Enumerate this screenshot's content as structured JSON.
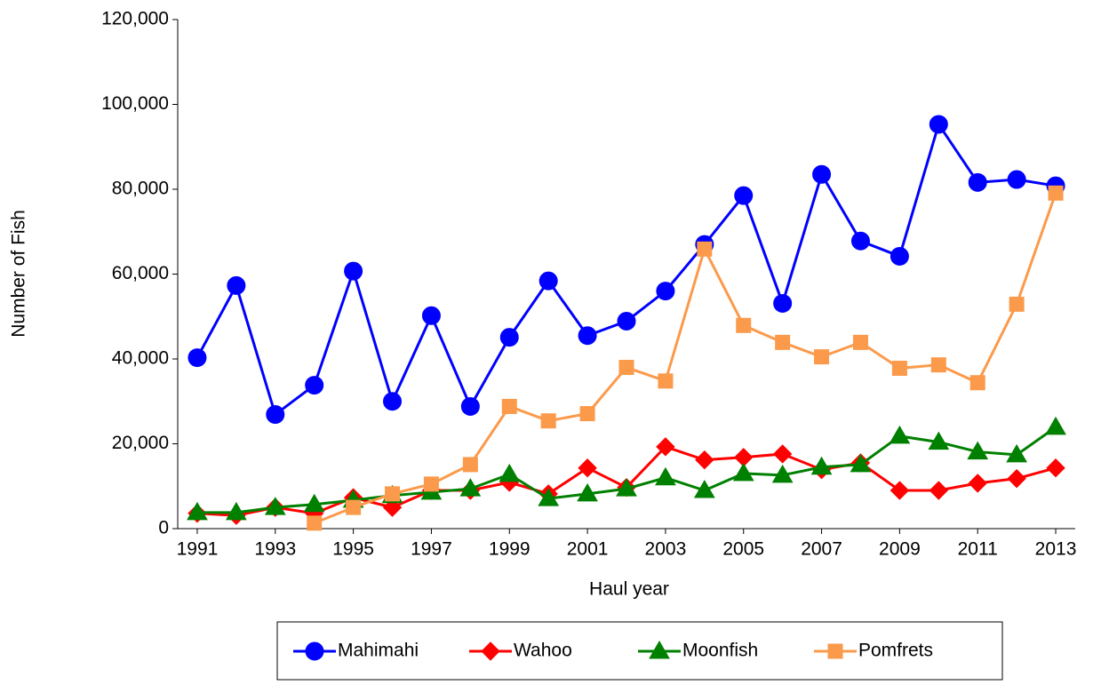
{
  "chart_data": {
    "type": "line",
    "xlabel": "Haul year",
    "ylabel": "Number of Fish",
    "x": [
      1991,
      1992,
      1993,
      1994,
      1995,
      1996,
      1997,
      1998,
      1999,
      2000,
      2001,
      2002,
      2003,
      2004,
      2005,
      2006,
      2007,
      2008,
      2009,
      2010,
      2011,
      2012,
      2013
    ],
    "xlim": [
      1990.5,
      2013.5
    ],
    "xticks": [
      1991,
      1993,
      1995,
      1997,
      1999,
      2001,
      2003,
      2005,
      2007,
      2009,
      2011,
      2013
    ],
    "ylim": [
      0,
      120000
    ],
    "yticks": [
      0,
      {
        "value": 20000,
        "label": "20,000"
      },
      {
        "value": 40000,
        "label": "40,000"
      },
      {
        "value": 60000,
        "label": "60,000"
      },
      {
        "value": 80000,
        "label": "80,000"
      },
      {
        "value": 100000,
        "label": "100,000"
      },
      {
        "value": 120000,
        "label": "120,000"
      }
    ],
    "grid": false,
    "legend": "bottom",
    "series": [
      {
        "name": "Mahimahi",
        "color": "#0000ff",
        "marker": "circle",
        "values": [
          40300,
          57300,
          26900,
          33800,
          60700,
          30000,
          50200,
          28800,
          45100,
          58400,
          45500,
          48900,
          56000,
          67000,
          78500,
          53100,
          83500,
          67800,
          64200,
          95300,
          81600,
          82300,
          80800
        ]
      },
      {
        "name": "Wahoo",
        "color": "#ff0000",
        "marker": "diamond",
        "values": [
          3600,
          3100,
          5000,
          3600,
          7300,
          5000,
          9000,
          9000,
          10900,
          8200,
          14300,
          9700,
          19300,
          16200,
          16800,
          17600,
          13900,
          15500,
          9000,
          9000,
          10700,
          11800,
          14300
        ]
      },
      {
        "name": "Moonfish",
        "color": "#008000",
        "marker": "triangle",
        "values": [
          3800,
          3800,
          5000,
          5700,
          6700,
          7800,
          8600,
          9400,
          12800,
          7100,
          8200,
          9400,
          12000,
          9000,
          13000,
          12600,
          14500,
          15100,
          21800,
          20400,
          18100,
          17400,
          23900
        ]
      },
      {
        "name": "Pomfrets",
        "color": "#fb9a4b",
        "marker": "square",
        "values": [
          null,
          null,
          null,
          1300,
          5000,
          8200,
          10500,
          15100,
          28800,
          25400,
          27100,
          38000,
          34800,
          65900,
          47900,
          43900,
          40500,
          43900,
          37800,
          38600,
          34400,
          52900,
          79100
        ]
      }
    ]
  }
}
